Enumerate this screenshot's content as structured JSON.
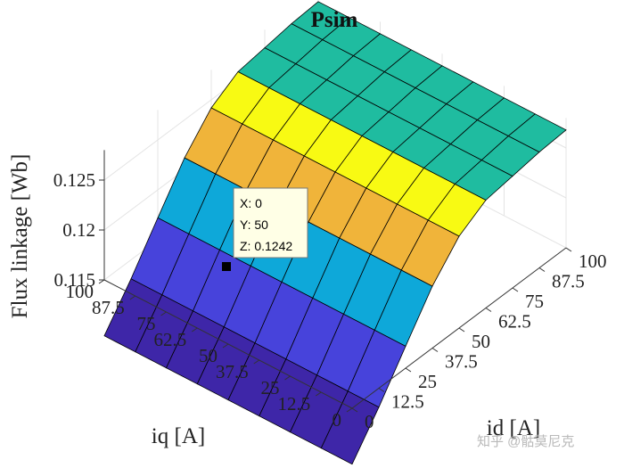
{
  "chart_data": {
    "type": "surface",
    "title": "Psim",
    "xlabel": "id [A]",
    "ylabel": "iq [A]",
    "zlabel": "Flux linkage [Wb]",
    "x_ticks": [
      "0",
      "12.5",
      "25",
      "37.5",
      "50",
      "62.5",
      "75",
      "87.5",
      "100"
    ],
    "y_ticks": [
      "0",
      "12.5",
      "25",
      "37.5",
      "50",
      "62.5",
      "75",
      "87.5",
      "100"
    ],
    "z_ticks": [
      "0.115",
      "0.12",
      "0.125"
    ],
    "x": [
      0,
      12.5,
      25,
      37.5,
      50,
      62.5,
      75,
      87.5,
      100
    ],
    "y": [
      0,
      12.5,
      25,
      37.5,
      50,
      62.5,
      75,
      87.5,
      100
    ],
    "zlim": [
      0.115,
      0.128
    ],
    "z": [
      [
        0.1094,
        0.1094,
        0.1094,
        0.1094,
        0.1094,
        0.1094,
        0.1094,
        0.1094,
        0.1094
      ],
      [
        0.1131,
        0.1131,
        0.1131,
        0.1131,
        0.1131,
        0.1131,
        0.1131,
        0.1131,
        0.1131
      ],
      [
        0.1172,
        0.1172,
        0.1172,
        0.1172,
        0.1172,
        0.1172,
        0.1172,
        0.1172,
        0.1172
      ],
      [
        0.1212,
        0.1212,
        0.1212,
        0.1212,
        0.1212,
        0.1212,
        0.1212,
        0.1212,
        0.1212
      ],
      [
        0.1242,
        0.1242,
        0.1242,
        0.1242,
        0.1242,
        0.1242,
        0.1242,
        0.1242,
        0.1242
      ],
      [
        0.1258,
        0.1258,
        0.1258,
        0.1258,
        0.1258,
        0.1258,
        0.1258,
        0.1258,
        0.1258
      ],
      [
        0.1262,
        0.1262,
        0.1262,
        0.1262,
        0.1262,
        0.1262,
        0.1262,
        0.1262,
        0.1262
      ],
      [
        0.1266,
        0.1266,
        0.1266,
        0.1266,
        0.1266,
        0.1266,
        0.1266,
        0.1266,
        0.1266
      ],
      [
        0.1268,
        0.1268,
        0.1268,
        0.1268,
        0.1268,
        0.1268,
        0.1268,
        0.1268,
        0.1268
      ]
    ],
    "colormap": [
      "#3e26a8",
      "#4743db",
      "#0ea8d9",
      "#f0b43a",
      "#f8fa13",
      "#1fbca0"
    ],
    "grid": true,
    "datatip": {
      "x": 0,
      "y": 50,
      "z": 0.1242,
      "x_text": "X: 0",
      "y_text": "Y: 50",
      "z_text": "Z: 0.1242"
    }
  },
  "watermark": "知乎 @骷莫尼克"
}
